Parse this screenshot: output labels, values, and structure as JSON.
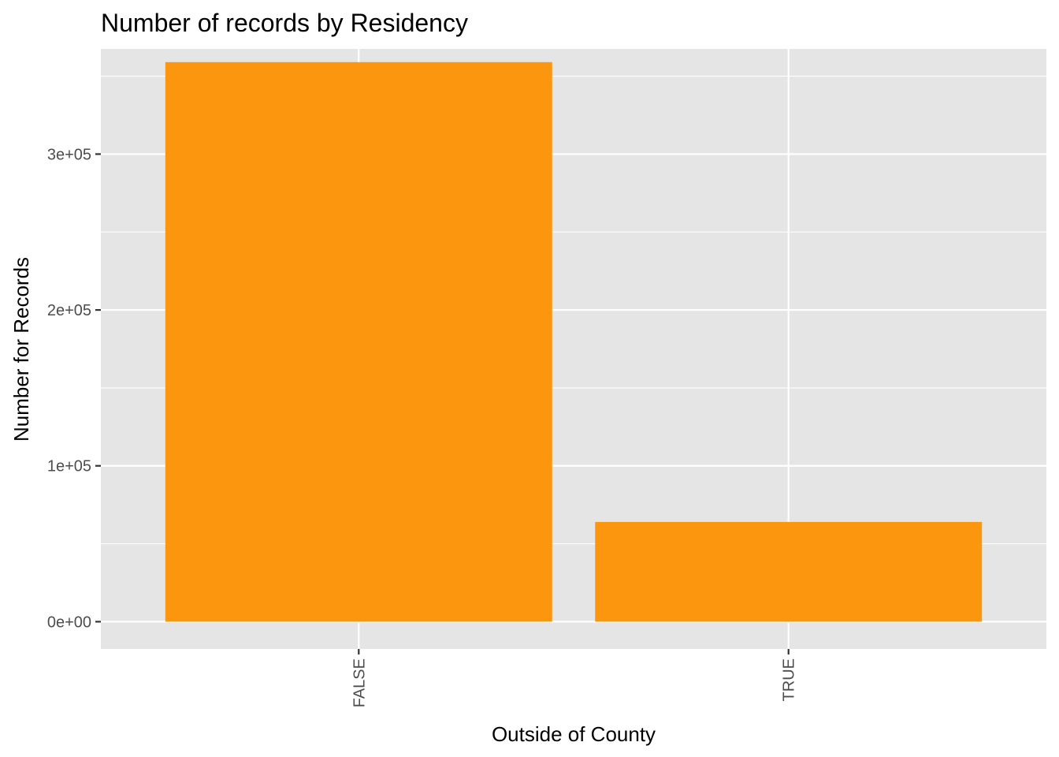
{
  "chart_data": {
    "type": "bar",
    "title": "Number of records by Residency",
    "xlabel": "Outside of County",
    "ylabel": "Number for Records",
    "categories": [
      "FALSE",
      "TRUE"
    ],
    "values": [
      359000,
      64000
    ],
    "ylim": [
      -17500,
      367500
    ],
    "yticks": [
      0,
      100000,
      200000,
      300000
    ],
    "ytick_labels": [
      "0e+00",
      "1e+05",
      "2e+05",
      "3e+05"
    ],
    "grid": true,
    "legend": "none",
    "colors": {
      "bar": "#fc960e",
      "panel": "#e5e5e5",
      "grid": "#ffffff"
    }
  }
}
